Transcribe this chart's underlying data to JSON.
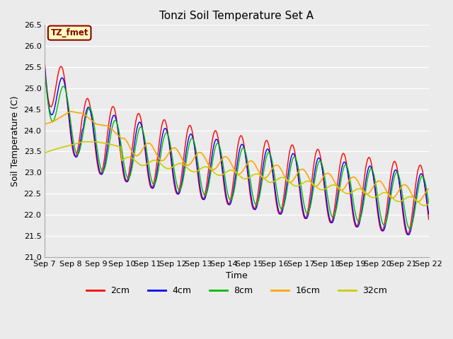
{
  "title": "Tonzi Soil Temperature Set A",
  "xlabel": "Time",
  "ylabel": "Soil Temperature (C)",
  "annotation": "TZ_fmet",
  "ylim": [
    21.0,
    26.5
  ],
  "yticks": [
    21.0,
    21.5,
    22.0,
    22.5,
    23.0,
    23.5,
    24.0,
    24.5,
    25.0,
    25.5,
    26.0,
    26.5
  ],
  "xtick_labels": [
    "Sep 7",
    "Sep 8",
    "Sep 9",
    "Sep 10",
    "Sep 11",
    "Sep 12",
    "Sep 13",
    "Sep 14",
    "Sep 15",
    "Sep 16",
    "Sep 17",
    "Sep 18",
    "Sep 19",
    "Sep 20",
    "Sep 21",
    "Sep 22"
  ],
  "line_colors": {
    "2cm": "#FF0000",
    "4cm": "#0000FF",
    "8cm": "#00BB00",
    "16cm": "#FFA500",
    "32cm": "#CCCC00"
  },
  "legend_labels": [
    "2cm",
    "4cm",
    "8cm",
    "16cm",
    "32cm"
  ],
  "bg_color": "#EBEBEB",
  "title_fontsize": 11,
  "label_fontsize": 9,
  "tick_fontsize": 8
}
